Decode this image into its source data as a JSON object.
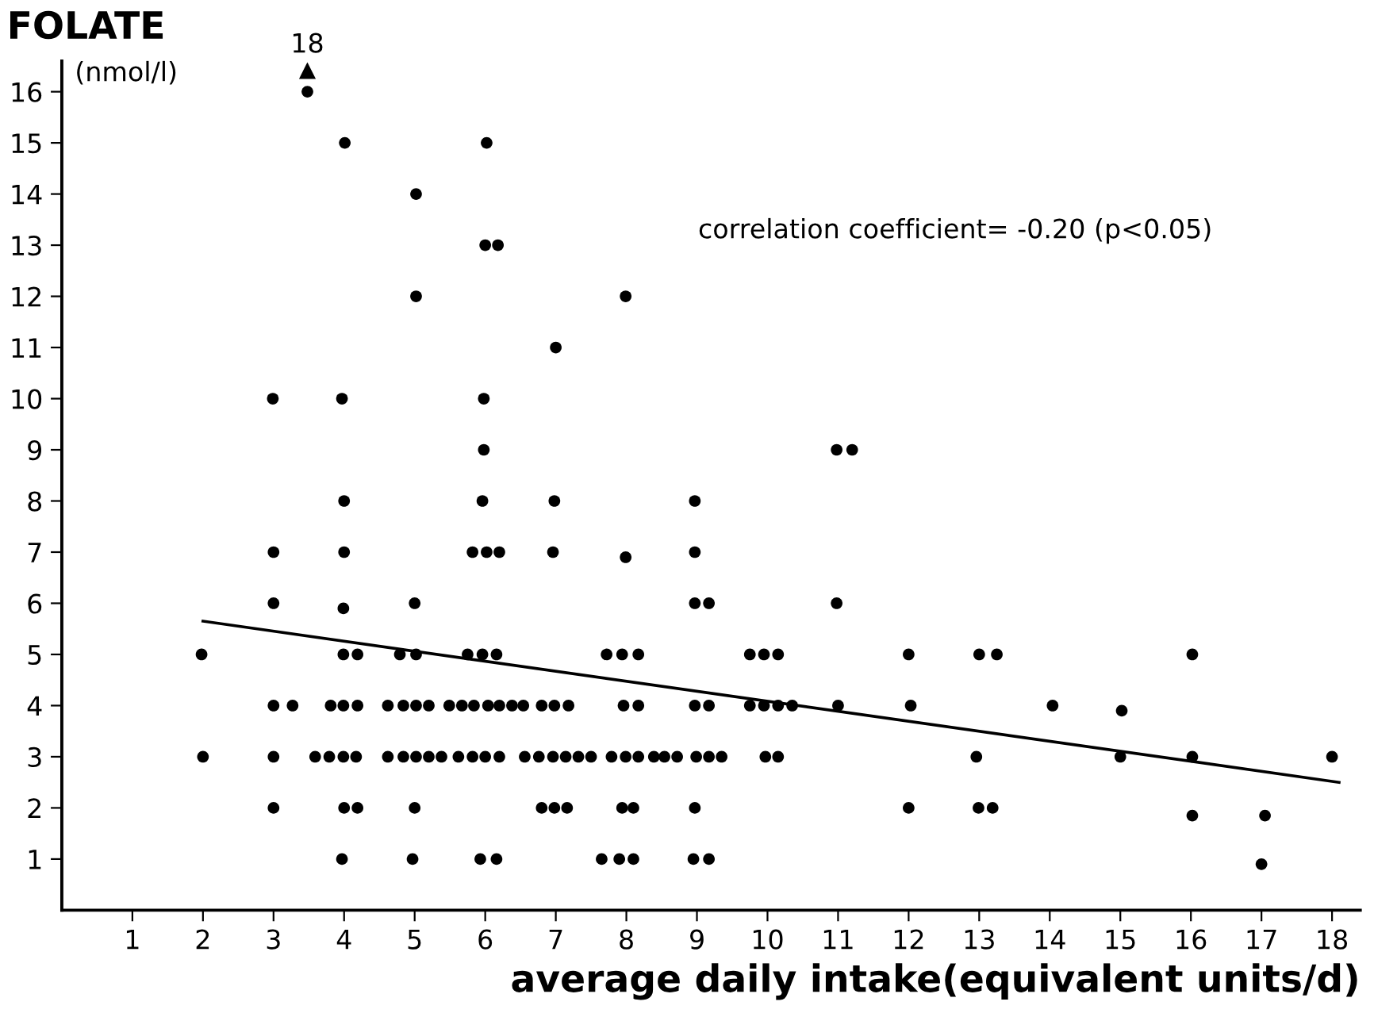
{
  "chart_data": {
    "type": "scatter",
    "title": "FOLATE",
    "ylabel": "(nmol/l)",
    "xlabel": "average daily intake(equivalent units/d)",
    "annotations": [
      "correlation coefficient= -0.20 (p<0.05)",
      {
        "text": "18",
        "x": 3.48,
        "y": 16.4
      }
    ],
    "xlim": [
      0,
      18.4
    ],
    "ylim": [
      0,
      16.6
    ],
    "xticks": [
      1,
      2,
      3,
      4,
      5,
      6,
      7,
      8,
      9,
      10,
      11,
      12,
      13,
      14,
      15,
      16,
      17,
      18
    ],
    "yticks": [
      1,
      2,
      3,
      4,
      5,
      6,
      7,
      8,
      9,
      10,
      11,
      12,
      13,
      14,
      15,
      16
    ],
    "grid": false,
    "legend": false,
    "marker": "circle",
    "series": [
      {
        "color": "#000000",
        "x": [
          1.98,
          2.0,
          2.99,
          3.0,
          3.0,
          3.0,
          3.27,
          3.0,
          3.0,
          3.48,
          4.01,
          3.97,
          4.0,
          4.0,
          3.99,
          3.99,
          4.19,
          3.81,
          3.99,
          4.19,
          3.59,
          3.79,
          3.99,
          4.17,
          4.0,
          4.19,
          3.97,
          5.02,
          5.02,
          5.0,
          4.79,
          5.02,
          5.0,
          4.97,
          4.62,
          4.84,
          5.02,
          5.2,
          5.49,
          5.67,
          5.84,
          6.04,
          6.2,
          6.38,
          6.54,
          6.8,
          6.98,
          7.18,
          7.96,
          8.17,
          8.97,
          9.17,
          9.75,
          9.95,
          10.15,
          10.35,
          11.0,
          12.03,
          14.04,
          15.02,
          4.62,
          4.84,
          5.02,
          5.2,
          5.38,
          5.62,
          5.82,
          6.0,
          6.2,
          6.56,
          6.76,
          6.96,
          7.14,
          7.32,
          7.5,
          7.79,
          7.99,
          8.17,
          8.39,
          8.54,
          8.72,
          8.99,
          9.17,
          9.35,
          9.97,
          10.15,
          12.96,
          15.0,
          16.02,
          18.0,
          5.75,
          5.96,
          6.16,
          7.72,
          7.94,
          8.17,
          9.75,
          9.95,
          10.15,
          12.0,
          13.0,
          13.25,
          16.02,
          8.97,
          9.17,
          10.98,
          5.82,
          6.02,
          6.2,
          6.96,
          7.99,
          8.97,
          5.96,
          6.98,
          8.97,
          6.8,
          6.98,
          7.16,
          7.94,
          8.1,
          8.97,
          12.0,
          12.99,
          13.19,
          16.02,
          17.05,
          5.93,
          6.16,
          7.65,
          7.9,
          8.1,
          8.95,
          9.17,
          17.0,
          6.02,
          6.0,
          6.18,
          5.98,
          5.98,
          7.99,
          7.0,
          10.98,
          11.2
        ],
        "values": [
          5,
          3,
          10,
          7,
          6,
          4,
          4,
          3,
          2,
          16,
          15,
          10,
          8,
          7,
          5.9,
          5,
          5,
          4,
          4,
          4,
          3,
          3,
          3,
          3,
          2,
          2,
          1,
          14,
          12,
          6,
          5,
          5,
          2,
          1,
          4,
          4,
          4,
          4,
          4,
          4,
          4,
          4,
          4,
          4,
          4,
          4,
          4,
          4,
          4,
          4,
          4,
          4,
          4,
          4,
          4,
          4,
          4,
          4,
          4,
          3.9,
          3,
          3,
          3,
          3,
          3,
          3,
          3,
          3,
          3,
          3,
          3,
          3,
          3,
          3,
          3,
          3,
          3,
          3,
          3,
          3,
          3,
          3,
          3,
          3,
          3,
          3,
          3,
          3,
          3,
          3,
          5,
          5,
          5,
          5,
          5,
          5,
          5,
          5,
          5,
          5,
          5,
          5,
          5,
          6,
          6,
          6,
          7,
          7,
          7,
          7,
          6.9,
          7,
          8,
          8,
          8,
          2,
          2,
          2,
          2,
          2,
          2,
          2,
          2,
          2,
          1.85,
          1.85,
          1,
          1,
          1,
          1,
          1,
          1,
          1,
          0.9,
          15,
          13,
          13,
          10,
          9,
          12,
          11,
          9,
          9
        ]
      },
      {
        "type": "line",
        "color": "#000000",
        "marker": "none",
        "line_style": "solid",
        "x": [
          2.0,
          18.1
        ],
        "values": [
          5.65,
          2.5
        ]
      }
    ]
  }
}
